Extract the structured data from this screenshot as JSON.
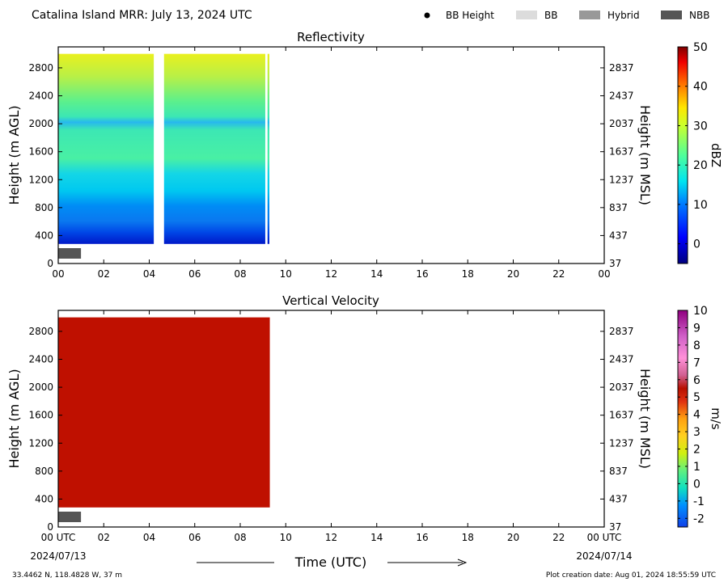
{
  "header": {
    "title": "Catalina Island MRR:  July 13, 2024 UTC",
    "legend": [
      {
        "label": "BB Height",
        "color": "#000000",
        "marker": "dot"
      },
      {
        "label": "BB",
        "color": "#dcdcdc",
        "marker": "bar"
      },
      {
        "label": "Hybrid",
        "color": "#999999",
        "marker": "bar"
      },
      {
        "label": "NBB",
        "color": "#555555",
        "marker": "bar"
      }
    ]
  },
  "chart_data": [
    {
      "type": "heatmap",
      "title": "Reflectivity",
      "ylabel": "Height (m AGL)",
      "ylabel_right": "Height (m MSL)",
      "xlim": [
        0,
        24
      ],
      "ylim": [
        0,
        3100
      ],
      "x_ticks": [
        "00",
        "02",
        "04",
        "06",
        "08",
        "10",
        "12",
        "14",
        "16",
        "18",
        "20",
        "22",
        "00"
      ],
      "y_ticks_left": [
        "0",
        "400",
        "800",
        "1200",
        "1600",
        "2000",
        "2400",
        "2800"
      ],
      "y_ticks_right": [
        "37",
        "437",
        "837",
        "1237",
        "1637",
        "2037",
        "2437",
        "2837"
      ],
      "colorbar": {
        "label": "dBZ",
        "min": -5,
        "max": 50,
        "ticks": [
          "0",
          "10",
          "20",
          "30",
          "40",
          "50"
        ],
        "tick_values": [
          0,
          10,
          20,
          30,
          40,
          50
        ]
      },
      "data_coverage": [
        {
          "start_hour": 0.0,
          "end_hour": 4.2,
          "bottom_m": 280,
          "top_m": 3000
        },
        {
          "start_hour": 4.65,
          "end_hour": 9.1,
          "bottom_m": 280,
          "top_m": 3000
        },
        {
          "start_hour": 9.2,
          "end_hour": 9.28,
          "bottom_m": 280,
          "top_m": 3000
        }
      ],
      "bb_type_bars": [
        {
          "start_hour": 0.0,
          "end_hour": 1.0,
          "class": "NBB"
        }
      ]
    },
    {
      "type": "heatmap",
      "title": "Vertical Velocity",
      "ylabel": "Height (m AGL)",
      "ylabel_right": "Height (m MSL)",
      "xlabel": "Time (UTC)",
      "xlim": [
        0,
        24
      ],
      "ylim": [
        0,
        3100
      ],
      "x_ticks": [
        "00 UTC",
        "02",
        "04",
        "06",
        "08",
        "10",
        "12",
        "14",
        "16",
        "18",
        "20",
        "22",
        "00 UTC"
      ],
      "y_ticks_left": [
        "0",
        "400",
        "800",
        "1200",
        "1600",
        "2000",
        "2400",
        "2800"
      ],
      "y_ticks_right": [
        "37",
        "437",
        "837",
        "1237",
        "1637",
        "2037",
        "2437",
        "2837"
      ],
      "colorbar": {
        "label": "m/s",
        "min": -2.5,
        "max": 10,
        "ticks": [
          "-2",
          "-1",
          "0",
          "1",
          "2",
          "3",
          "4",
          "5",
          "6",
          "7",
          "8",
          "9",
          "10"
        ],
        "tick_values": [
          -2,
          -1,
          0,
          1,
          2,
          3,
          4,
          5,
          6,
          7,
          8,
          9,
          10
        ]
      },
      "data_coverage": [
        {
          "start_hour": 0.0,
          "end_hour": 9.3,
          "bottom_m": 280,
          "top_m": 3000,
          "value_ms": 6.5
        }
      ],
      "bb_type_bars": [
        {
          "start_hour": 0.0,
          "end_hour": 1.0,
          "class": "NBB"
        }
      ]
    }
  ],
  "footer": {
    "date_left": "2024/07/13",
    "date_right": "2024/07/14",
    "location": "33.4462 N, 118.4828 W, 37 m",
    "creation": "Plot creation date: Aug 01, 2024 18:55:59 UTC"
  }
}
